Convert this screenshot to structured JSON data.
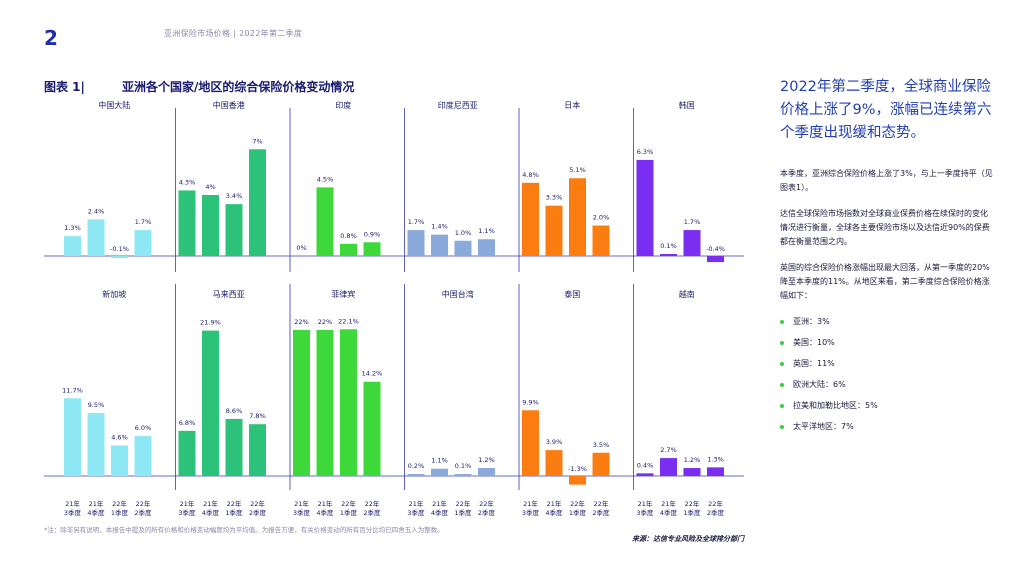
{
  "page_number": "2",
  "header": "亚洲保险市场价格 | 2022年第二季度",
  "figure": {
    "label": "图表 1|",
    "title": "亚洲各个国家/地区的综合保险价格变动情况"
  },
  "right": {
    "headline": "2022年第二季度，全球商业保险价格上涨了9%，涨幅已连续第六个季度出现缓和态势。",
    "paragraphs": [
      "本季度，亚洲综合保险价格上涨了3%，与上一季度持平（见图表1）。",
      "达信全球保险市场指数对全球商业保费价格在续保时的变化情况进行衡量，全球各主要保险市场以及达信近90%的保费都在衡量范围之内。",
      "英国的综合保险价格涨幅出现最大回落，从第一季度的20%降至本季度的11%。从地区来看，第二季度综合保险价格涨幅如下："
    ],
    "bullets": [
      "亚洲：3%",
      "美国：10%",
      "英国：11%",
      "欧洲大陆：6%",
      "拉美和加勒比地区：5%",
      "太平洋地区：7%"
    ]
  },
  "footnote": "*注：除非另有说明，本报告中提及的所有价格和价格变动幅度均为平均值。为报告方便，有关价格变动的所有百分比均已四舍五入为整数。",
  "source": "来源：达信专业风险及全球排分部门",
  "colors": {
    "bullet": "#3ecb4a",
    "axis": "#3a3ab0",
    "text": "#1a1a6e"
  },
  "chart_data": {
    "type": "bar",
    "categories": [
      "21年\n3季度",
      "21年\n4季度",
      "22年\n1季度",
      "22年\n2季度"
    ],
    "panels": [
      {
        "name": "中国大陆",
        "color": "#8ee8f4",
        "values": [
          1.3,
          2.4,
          -0.1,
          1.7
        ],
        "labels": [
          "1.3%",
          "2.4%",
          "-0.1%",
          "1.7%"
        ]
      },
      {
        "name": "中国香港",
        "color": "#2dc27a",
        "values": [
          4.3,
          4,
          3.4,
          7
        ],
        "labels": [
          "4.3%",
          "4%",
          "3.4%",
          "7%"
        ]
      },
      {
        "name": "印度",
        "color": "#3fd83a",
        "values": [
          0,
          4.5,
          0.8,
          0.9
        ],
        "labels": [
          "0%",
          "4.5%",
          "0.8%",
          "0.9%"
        ]
      },
      {
        "name": "印度尼西亚",
        "color": "#8aaadc",
        "values": [
          1.7,
          1.4,
          1.0,
          1.1
        ],
        "labels": [
          "1.7%",
          "1.4%",
          "1.0%",
          "1.1%"
        ]
      },
      {
        "name": "日本",
        "color": "#fb7d12",
        "values": [
          4.8,
          3.3,
          5.1,
          2.0
        ],
        "labels": [
          "4.8%",
          "3.3%",
          "5.1%",
          "2.0%"
        ]
      },
      {
        "name": "韩国",
        "color": "#7a2ff0",
        "values": [
          6.3,
          0.1,
          1.7,
          -0.4
        ],
        "labels": [
          "6.3%",
          "0.1%",
          "1.7%",
          "-0.4%"
        ]
      },
      {
        "name": "新加坡",
        "color": "#8ee8f4",
        "values": [
          11.7,
          9.5,
          4.6,
          6.0
        ],
        "labels": [
          "11.7%",
          "9.5%",
          "4.6%",
          "6.0%"
        ]
      },
      {
        "name": "马来西亚",
        "color": "#2dc27a",
        "values": [
          6.8,
          21.9,
          8.6,
          7.8
        ],
        "labels": [
          "6.8%",
          "21.9%",
          "8.6%",
          "7.8%"
        ]
      },
      {
        "name": "菲律宾",
        "color": "#3fd83a",
        "values": [
          22,
          22,
          22.1,
          14.2
        ],
        "labels": [
          "22%",
          "22%",
          "22.1%",
          "14.2%"
        ]
      },
      {
        "name": "中国台湾",
        "color": "#8aaadc",
        "values": [
          0.2,
          1.1,
          0.1,
          1.2
        ],
        "labels": [
          "0.2%",
          "1.1%",
          "0.1%",
          "1.2%"
        ]
      },
      {
        "name": "泰国",
        "color": "#fb7d12",
        "values": [
          9.9,
          3.9,
          -1.3,
          3.5
        ],
        "labels": [
          "9.9%",
          "3.9%",
          "-1.3%",
          "3.5%"
        ]
      },
      {
        "name": "越南",
        "color": "#7a2ff0",
        "values": [
          0.4,
          2.7,
          1.2,
          1.3
        ],
        "labels": [
          "0.4%",
          "2.7%",
          "1.2%",
          "1.3%"
        ]
      }
    ]
  }
}
